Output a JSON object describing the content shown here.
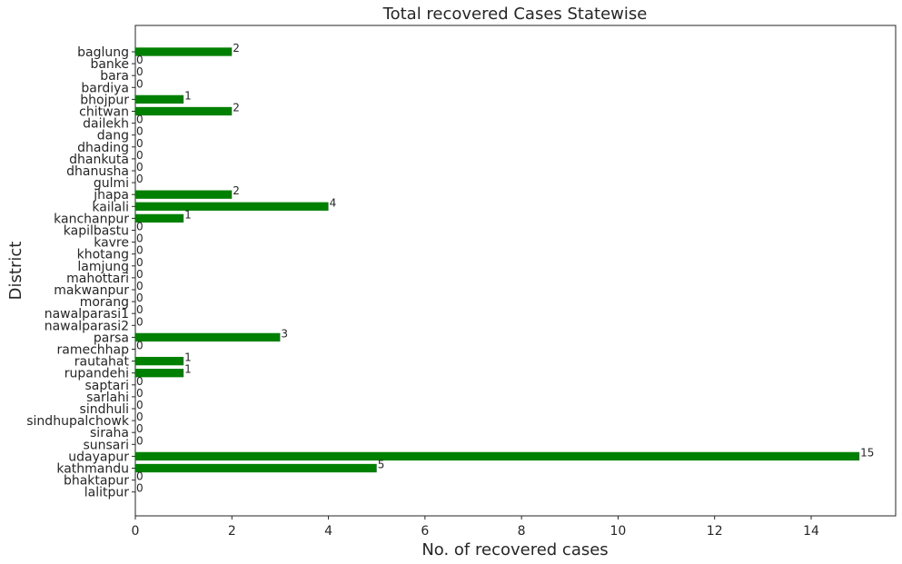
{
  "chart_data": {
    "type": "bar",
    "orientation": "horizontal",
    "title": "Total recovered Cases Statewise",
    "xlabel": "No. of recovered cases",
    "ylabel": "District",
    "xlim": [
      0,
      15.75
    ],
    "xticks": [
      0,
      2,
      4,
      6,
      8,
      10,
      12,
      14
    ],
    "grid": false,
    "bar_color": "#008000",
    "categories": [
      "baglung",
      "banke",
      "bara",
      "bardiya",
      "bhojpur",
      "chitwan",
      "dailekh",
      "dang",
      "dhading",
      "dhankuta",
      "dhanusha",
      "gulmi",
      "jhapa",
      "kailali",
      "kanchanpur",
      "kapilbastu",
      "kavre",
      "khotang",
      "lamjung",
      "mahottari",
      "makwanpur",
      "morang",
      "nawalparasi1",
      "nawalparasi2",
      "parsa",
      "ramechhap",
      "rautahat",
      "rupandehi",
      "saptari",
      "sarlahi",
      "sindhuli",
      "sindhupalchowk",
      "siraha",
      "sunsari",
      "udayapur",
      "kathmandu",
      "bhaktapur",
      "lalitpur"
    ],
    "values": [
      2,
      0,
      0,
      0,
      1,
      2,
      0,
      0,
      0,
      0,
      0,
      0,
      2,
      4,
      1,
      0,
      0,
      0,
      0,
      0,
      0,
      0,
      0,
      0,
      3,
      0,
      1,
      1,
      0,
      0,
      0,
      0,
      0,
      0,
      15,
      5,
      0,
      0
    ]
  }
}
